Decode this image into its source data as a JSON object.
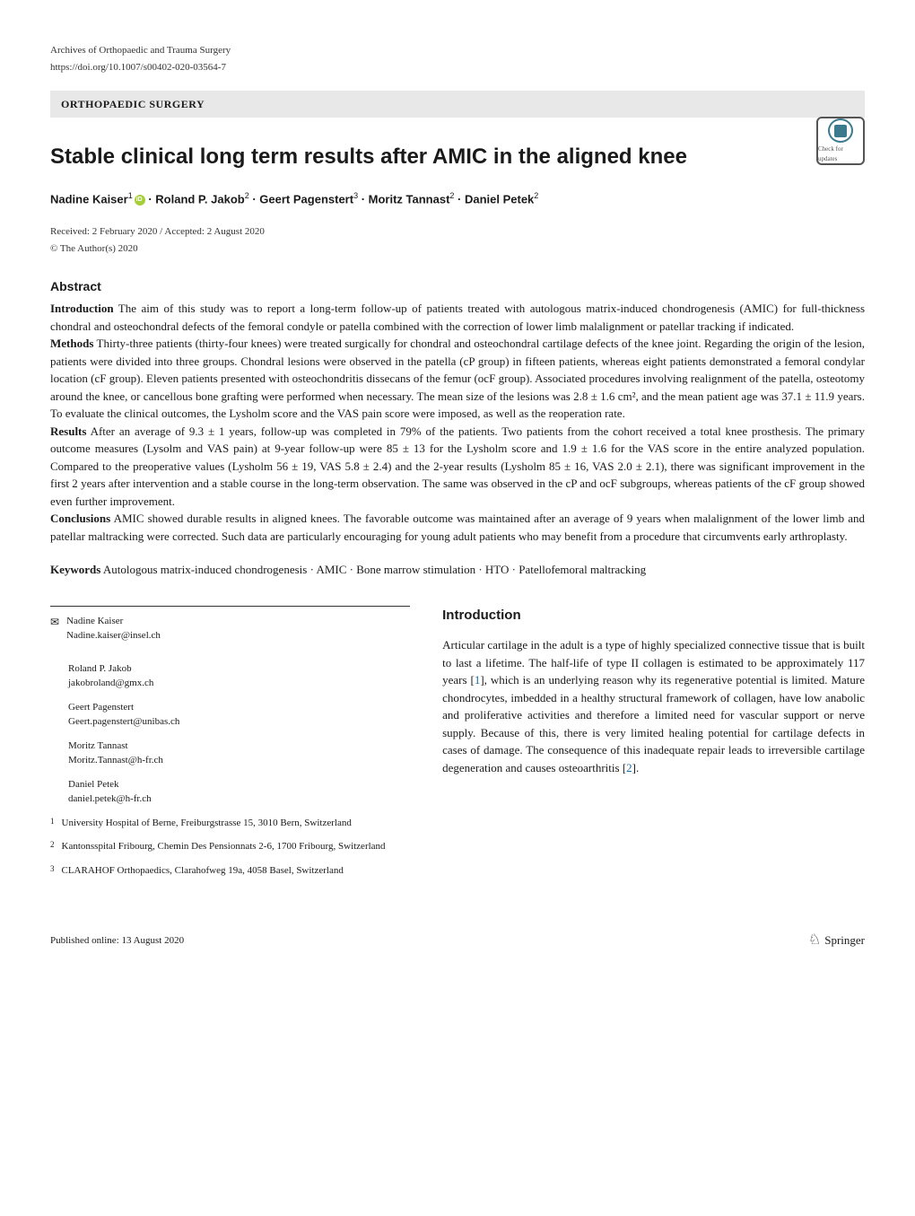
{
  "journal": "Archives of Orthopaedic and Trauma Surgery",
  "doi": "https://doi.org/10.1007/s00402-020-03564-7",
  "category": "ORTHOPAEDIC SURGERY",
  "check_updates": "Check for updates",
  "title": "Stable clinical long term results after AMIC in the aligned knee",
  "authors_line_1": "Nadine Kaiser",
  "authors_sup_1": "1",
  "authors_line_2": " · Roland P. Jakob",
  "authors_sup_2": "2",
  "authors_line_3": " · Geert Pagenstert",
  "authors_sup_3": "3",
  "authors_line_4": " · Moritz Tannast",
  "authors_sup_4": "2",
  "authors_line_5": " · Daniel Petek",
  "authors_sup_5": "2",
  "received": "Received: 2 February 2020 / Accepted: 2 August 2020",
  "copyright": "© The Author(s) 2020",
  "abstract_heading": "Abstract",
  "abstract": {
    "intro_label": "Introduction",
    "intro_text": " The aim of this study was to report a long-term follow-up of patients treated with autologous matrix-induced chondrogenesis (AMIC) for full-thickness chondral and osteochondral defects of the femoral condyle or patella combined with the correction of lower limb malalignment or patellar tracking if indicated.",
    "methods_label": "Methods",
    "methods_text": " Thirty-three patients (thirty-four knees) were treated surgically for chondral and osteochondral cartilage defects of the knee joint. Regarding the origin of the lesion, patients were divided into three groups. Chondral lesions were observed in the patella (cP group) in fifteen patients, whereas eight patients demonstrated a femoral condylar location (cF group). Eleven patients presented with osteochondritis dissecans of the femur (ocF group). Associated procedures involving realignment of the patella, osteotomy around the knee, or cancellous bone grafting were performed when necessary. The mean size of the lesions was 2.8 ± 1.6 cm², and the mean patient age was 37.1 ± 11.9 years. To evaluate the clinical outcomes, the Lysholm score and the VAS pain score were imposed, as well as the reoperation rate.",
    "results_label": "Results",
    "results_text": " After an average of 9.3 ± 1 years, follow-up was completed in 79% of the patients. Two patients from the cohort received a total knee prosthesis. The primary outcome measures (Lysolm and VAS pain) at 9-year follow-up were 85 ± 13 for the Lysholm score and 1.9 ± 1.6 for the VAS score in the entire analyzed population. Compared to the preoperative values (Lysholm 56 ± 19, VAS 5.8 ± 2.4) and the 2-year results (Lysholm 85 ± 16, VAS 2.0 ± 2.1), there was significant improvement in the first 2 years after intervention and a stable course in the long-term observation. The same was observed in the cP and ocF subgroups, whereas patients of the cF group showed even further improvement.",
    "conclusions_label": "Conclusions",
    "conclusions_text": " AMIC showed durable results in aligned knees. The favorable outcome was maintained after an average of 9 years when malalignment of the lower limb and patellar maltracking were corrected. Such data are particularly encouraging for young adult patients who may benefit from a procedure that circumvents early arthroplasty."
  },
  "keywords_label": "Keywords",
  "keywords_text": " Autologous matrix-induced chondrogenesis · AMIC · Bone marrow stimulation · HTO · Patellofemoral maltracking",
  "correspondence": {
    "a1_name": "Nadine Kaiser",
    "a1_email": "Nadine.kaiser@insel.ch",
    "a2_name": "Roland P. Jakob",
    "a2_email": "jakobroland@gmx.ch",
    "a3_name": "Geert Pagenstert",
    "a3_email": "Geert.pagenstert@unibas.ch",
    "a4_name": "Moritz Tannast",
    "a4_email": "Moritz.Tannast@h-fr.ch",
    "a5_name": "Daniel Petek",
    "a5_email": "daniel.petek@h-fr.ch"
  },
  "affiliations": {
    "n1": "1",
    "a1": "University Hospital of Berne, Freiburgstrasse 15, 3010 Bern, Switzerland",
    "n2": "2",
    "a2": "Kantonsspital Fribourg, Chemin Des Pensionnats 2-6, 1700 Fribourg, Switzerland",
    "n3": "3",
    "a3": "CLARAHOF Orthopaedics, Clarahofweg 19a, 4058 Basel, Switzerland"
  },
  "intro_heading": "Introduction",
  "intro_p1a": "Articular cartilage in the adult is a type of highly specialized connective tissue that is built to last a lifetime. The half-life of type II collagen is estimated to be approximately 117 years [",
  "intro_ref1": "1",
  "intro_p1b": "], which is an underlying reason why its regenerative potential is limited. Mature chondrocytes, imbedded in a healthy structural framework of collagen, have low anabolic and proliferative activities and therefore a limited need for vascular support or nerve supply. Because of this, there is very limited healing potential for cartilage defects in cases of damage. The consequence of this inadequate repair leads to irreversible cartilage degeneration and causes osteoarthritis [",
  "intro_ref2": "2",
  "intro_p1c": "].",
  "published_online": "Published online: 13 August 2020",
  "publisher": "Springer"
}
